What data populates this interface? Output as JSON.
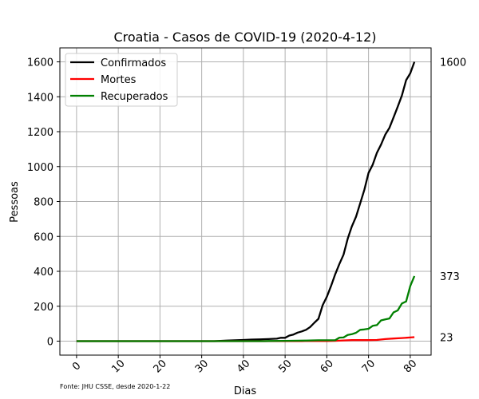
{
  "chart_data": {
    "type": "line",
    "title": "Croatia - Casos de COVID-19 (2020-4-12)",
    "xlabel": "Dias",
    "ylabel": "Pessoas",
    "xlim": [
      -4,
      85
    ],
    "ylim": [
      -80,
      1680
    ],
    "xticks": [
      0,
      10,
      20,
      30,
      40,
      50,
      60,
      70,
      80
    ],
    "yticks": [
      0,
      200,
      400,
      600,
      800,
      1000,
      1200,
      1400,
      1600
    ],
    "grid": true,
    "legend_position": "top-left",
    "source_note": "Fonte: JHU CSSE, desde 2020-1-22",
    "series": [
      {
        "name": "Confirmados",
        "color": "#000000",
        "end_label": "1600",
        "points": [
          [
            0,
            0
          ],
          [
            33,
            0
          ],
          [
            34,
            1
          ],
          [
            36,
            3
          ],
          [
            38,
            5
          ],
          [
            40,
            7
          ],
          [
            42,
            9
          ],
          [
            44,
            10
          ],
          [
            46,
            12
          ],
          [
            48,
            14
          ],
          [
            49,
            19
          ],
          [
            50,
            19
          ],
          [
            51,
            32
          ],
          [
            52,
            38
          ],
          [
            53,
            49
          ],
          [
            54,
            56
          ],
          [
            55,
            65
          ],
          [
            56,
            81
          ],
          [
            57,
            105
          ],
          [
            58,
            128
          ],
          [
            59,
            206
          ],
          [
            60,
            254
          ],
          [
            61,
            315
          ],
          [
            62,
            382
          ],
          [
            63,
            442
          ],
          [
            64,
            495
          ],
          [
            65,
            586
          ],
          [
            66,
            657
          ],
          [
            67,
            713
          ],
          [
            68,
            790
          ],
          [
            69,
            867
          ],
          [
            70,
            963
          ],
          [
            71,
            1011
          ],
          [
            72,
            1079
          ],
          [
            73,
            1126
          ],
          [
            74,
            1182
          ],
          [
            75,
            1222
          ],
          [
            76,
            1282
          ],
          [
            77,
            1343
          ],
          [
            78,
            1407
          ],
          [
            79,
            1495
          ],
          [
            80,
            1534
          ],
          [
            81,
            1600
          ]
        ]
      },
      {
        "name": "Mortes",
        "color": "#ff0000",
        "end_label": "23",
        "points": [
          [
            0,
            0
          ],
          [
            54,
            0
          ],
          [
            55,
            1
          ],
          [
            58,
            1
          ],
          [
            60,
            1
          ],
          [
            62,
            2
          ],
          [
            64,
            4
          ],
          [
            66,
            6
          ],
          [
            68,
            6
          ],
          [
            70,
            6
          ],
          [
            72,
            7
          ],
          [
            74,
            12
          ],
          [
            76,
            15
          ],
          [
            78,
            18
          ],
          [
            80,
            21
          ],
          [
            81,
            23
          ]
        ]
      },
      {
        "name": "Recuperados",
        "color": "#008000",
        "end_label": "373",
        "points": [
          [
            0,
            0
          ],
          [
            45,
            0
          ],
          [
            46,
            1
          ],
          [
            50,
            2
          ],
          [
            55,
            3
          ],
          [
            58,
            5
          ],
          [
            60,
            5
          ],
          [
            62,
            5
          ],
          [
            63,
            20
          ],
          [
            64,
            21
          ],
          [
            65,
            35
          ],
          [
            66,
            40
          ],
          [
            67,
            48
          ],
          [
            68,
            65
          ],
          [
            69,
            67
          ],
          [
            70,
            71
          ],
          [
            71,
            88
          ],
          [
            72,
            92
          ],
          [
            73,
            119
          ],
          [
            74,
            125
          ],
          [
            75,
            130
          ],
          [
            76,
            165
          ],
          [
            77,
            176
          ],
          [
            78,
            216
          ],
          [
            79,
            227
          ],
          [
            80,
            316
          ],
          [
            81,
            373
          ]
        ]
      }
    ]
  }
}
